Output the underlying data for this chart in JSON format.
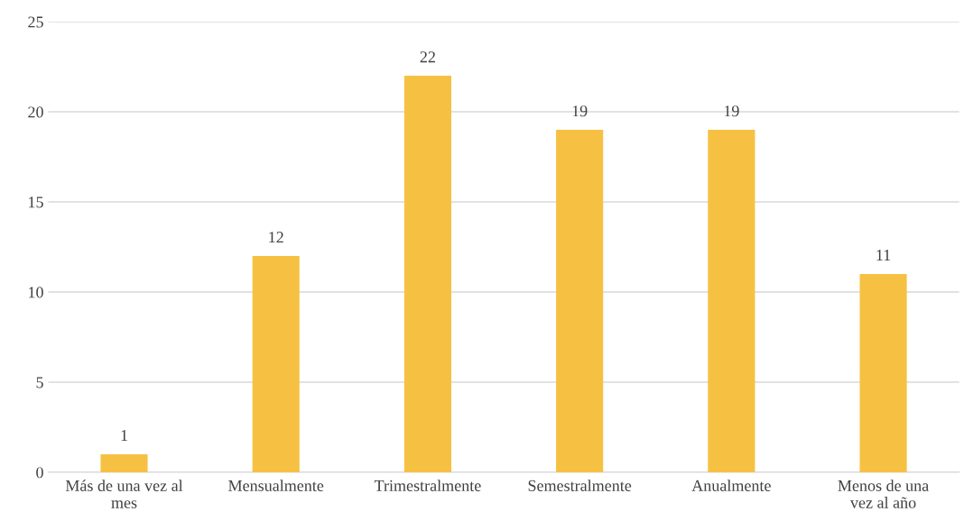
{
  "chart_data": {
    "type": "bar",
    "categories": [
      "Más de una vez al\nmes",
      "Mensualmente",
      "Trimestralmente",
      "Semestralmente",
      "Anualmente",
      "Menos de una\nvez al año"
    ],
    "values": [
      1,
      12,
      22,
      19,
      19,
      11
    ],
    "color": "#f6c143",
    "ylim": [
      0,
      25
    ],
    "yticks": [
      0,
      5,
      10,
      15,
      20,
      25
    ],
    "grid": "y",
    "data_labels": true,
    "legend": false
  }
}
